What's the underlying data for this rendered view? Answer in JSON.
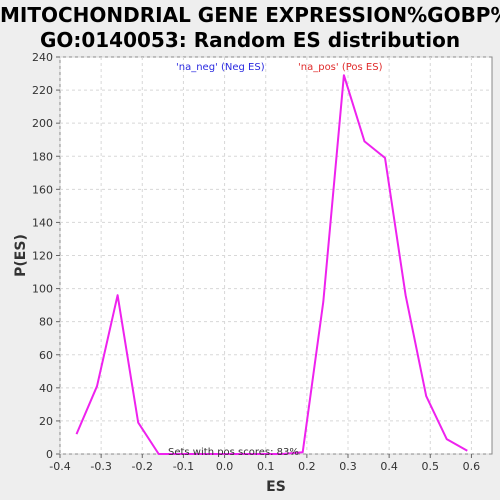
{
  "chart_data": {
    "type": "line",
    "title_line1": "MITOCHONDRIAL GENE EXPRESSION%GOBP%",
    "title_line2": "GO:0140053: Random ES distribution",
    "xlabel": "ES",
    "ylabel": "P(ES)",
    "xlim": [
      -0.4,
      0.65
    ],
    "ylim": [
      0,
      240
    ],
    "xticks": [
      "-0.4",
      "-0.3",
      "-0.2",
      "-0.1",
      "0.0",
      "0.1",
      "0.2",
      "0.3",
      "0.4",
      "0.5",
      "0.6"
    ],
    "yticks": [
      "0",
      "20",
      "40",
      "60",
      "80",
      "100",
      "120",
      "140",
      "160",
      "180",
      "200",
      "220",
      "240"
    ],
    "grid": true,
    "line_color": "#ee22ee",
    "series": [
      {
        "x": [
          -0.36,
          -0.31,
          -0.26,
          -0.21,
          -0.16,
          -0.11,
          -0.06,
          -0.01,
          0.04,
          0.09,
          0.14,
          0.19,
          0.24,
          0.29,
          0.34,
          0.39,
          0.44,
          0.49,
          0.54,
          0.59
        ],
        "y": [
          12,
          41,
          96,
          19,
          0,
          0,
          0,
          0,
          0,
          0,
          0,
          1,
          92,
          229,
          189,
          179,
          96,
          35,
          9,
          2
        ]
      }
    ],
    "legend": [
      {
        "text": "'na_neg' (Neg ES)",
        "color": "#2a2ae0"
      },
      {
        "text": "'na_pos' (Pos ES)",
        "color": "#e02a2a"
      }
    ],
    "annotation": "Sets with pos scores: 83%"
  }
}
